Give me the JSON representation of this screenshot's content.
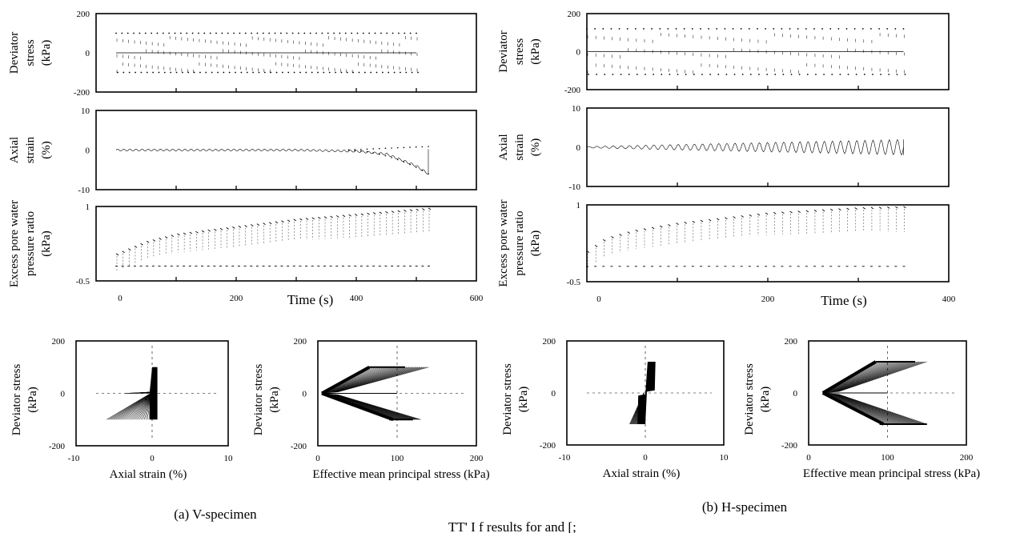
{
  "captions": {
    "left": "(a) V-specimen",
    "right": "(b) H-specimen",
    "bottom_fragment": "TT' I f  results for and [;"
  },
  "chart_data": [
    {
      "id": "v-dev-time",
      "type": "line",
      "panel": "V-specimen",
      "ylabel": [
        "Deviator",
        "stress",
        "(kPa)"
      ],
      "ylim": [
        -200,
        200
      ],
      "yticks": [
        "200",
        "0",
        "-200"
      ],
      "xlim": [
        0,
        600
      ],
      "x": [
        0,
        100,
        200,
        300,
        400,
        500
      ],
      "series": [
        {
          "values": [
            0,
            0,
            0,
            0,
            0,
            0
          ]
        }
      ],
      "upper_peak": 100,
      "lower_peak": -100,
      "cycles": 52
    },
    {
      "id": "v-axial-time",
      "type": "line",
      "panel": "V-specimen",
      "ylabel": [
        "Axial",
        "strain",
        "(%)"
      ],
      "ylim": [
        -10,
        10
      ],
      "yticks": [
        "10",
        "0",
        "-10"
      ],
      "xlim": [
        0,
        600
      ],
      "x": [
        0,
        100,
        200,
        300,
        400,
        450,
        500,
        520
      ],
      "series": [
        {
          "values": [
            0,
            0,
            0,
            0,
            -0.3,
            -1,
            -4,
            -6
          ]
        }
      ],
      "cycles": 52
    },
    {
      "id": "v-ppr-time",
      "type": "line",
      "panel": "V-specimen",
      "ylabel": [
        "Excess pore water",
        "pressure ratio",
        "(kPa)"
      ],
      "ylim": [
        -0.5,
        1
      ],
      "yticks": [
        "1",
        "",
        "-0.5"
      ],
      "xlim": [
        0,
        600
      ],
      "xticks": [
        "0",
        "200",
        "400",
        "600"
      ],
      "xlabel": "Time (s)",
      "x": [
        0,
        50,
        100,
        200,
        300,
        400,
        500,
        520
      ],
      "series": [
        {
          "values": [
            0.05,
            0.3,
            0.45,
            0.6,
            0.75,
            0.85,
            0.95,
            0.97
          ]
        }
      ],
      "cycles": 52
    },
    {
      "id": "h-dev-time",
      "type": "line",
      "panel": "H-specimen",
      "ylabel": [
        "Deviator",
        "stress",
        "(kPa)"
      ],
      "ylim": [
        -200,
        200
      ],
      "yticks": [
        "200",
        "0",
        "-200"
      ],
      "xlim": [
        0,
        400
      ],
      "x": [
        0,
        100,
        200,
        300,
        350
      ],
      "series": [
        {
          "values": [
            0,
            0,
            0,
            0,
            0
          ]
        }
      ],
      "upper_peak": 120,
      "lower_peak": -120,
      "cycles": 40
    },
    {
      "id": "h-axial-time",
      "type": "line",
      "panel": "H-specimen",
      "ylabel": [
        "Axial",
        "strain",
        "(%)"
      ],
      "ylim": [
        -10,
        10
      ],
      "yticks": [
        "10",
        "0",
        "-10"
      ],
      "xlim": [
        0,
        400
      ],
      "x": [
        0,
        100,
        200,
        300,
        350
      ],
      "series": [
        {
          "values": [
            0,
            0,
            0,
            0,
            0
          ]
        }
      ],
      "amplitude": [
        0.2,
        0.6,
        1.0,
        1.5,
        2.0
      ],
      "cycles": 40
    },
    {
      "id": "h-ppr-time",
      "type": "line",
      "panel": "H-specimen",
      "ylabel": [
        "Excess pore water",
        "pressure ratio",
        "(kPa)"
      ],
      "ylim": [
        -0.5,
        1
      ],
      "yticks": [
        "1",
        "",
        "-0.5"
      ],
      "xlim": [
        0,
        400
      ],
      "xticks": [
        "0",
        "200",
        "400"
      ],
      "xlabel": "Time (s)",
      "x": [
        0,
        20,
        50,
        100,
        200,
        300,
        350
      ],
      "series": [
        {
          "values": [
            0.1,
            0.35,
            0.5,
            0.65,
            0.85,
            0.95,
            0.97
          ]
        }
      ],
      "cycles": 40
    },
    {
      "id": "v-stress-strain",
      "type": "line",
      "panel": "V-specimen",
      "ylabel": [
        "Deviator stress",
        "(kPa)"
      ],
      "xlabel": "Axial strain   (%)",
      "xlim": [
        -10,
        10
      ],
      "ylim": [
        -200,
        200
      ],
      "xticks": [
        "-10",
        "0",
        "10"
      ],
      "yticks": [
        "200",
        "0",
        "-200"
      ],
      "upper": 100,
      "lower": -100,
      "min_strain": -6
    },
    {
      "id": "v-stress-path",
      "type": "line",
      "panel": "V-specimen",
      "ylabel": [
        "Deviator stress",
        "(kPa)"
      ],
      "xlabel": "Effective mean principal stress  (kPa)",
      "xlim": [
        0,
        200
      ],
      "ylim": [
        -200,
        200
      ],
      "xticks": [
        "0",
        "100",
        "200"
      ],
      "yticks": [
        "200",
        "0",
        "-200"
      ],
      "upper": 100,
      "lower": -100,
      "p0": 100,
      "pmin": 5
    },
    {
      "id": "h-stress-strain",
      "type": "line",
      "panel": "H-specimen",
      "ylabel": [
        "Deviator stress",
        "(kPa)"
      ],
      "xlabel": "Axial strain   (%)",
      "xlim": [
        -10,
        10
      ],
      "ylim": [
        -200,
        200
      ],
      "xticks": [
        "-10",
        "0",
        "10"
      ],
      "yticks": [
        "200",
        "0",
        "-200"
      ],
      "upper": 120,
      "lower": -120,
      "min_strain": -2
    },
    {
      "id": "h-stress-path",
      "type": "line",
      "panel": "H-specimen",
      "ylabel": [
        "Deviator stress",
        "(kPa)"
      ],
      "xlabel": "Effective mean principal stress  (kPa)",
      "xlim": [
        0,
        200
      ],
      "ylim": [
        -200,
        200
      ],
      "xticks": [
        "0",
        "100",
        "200"
      ],
      "yticks": [
        "200",
        "0",
        "-200"
      ],
      "upper": 120,
      "lower": -120,
      "p0": 100,
      "pmin": 18
    }
  ]
}
